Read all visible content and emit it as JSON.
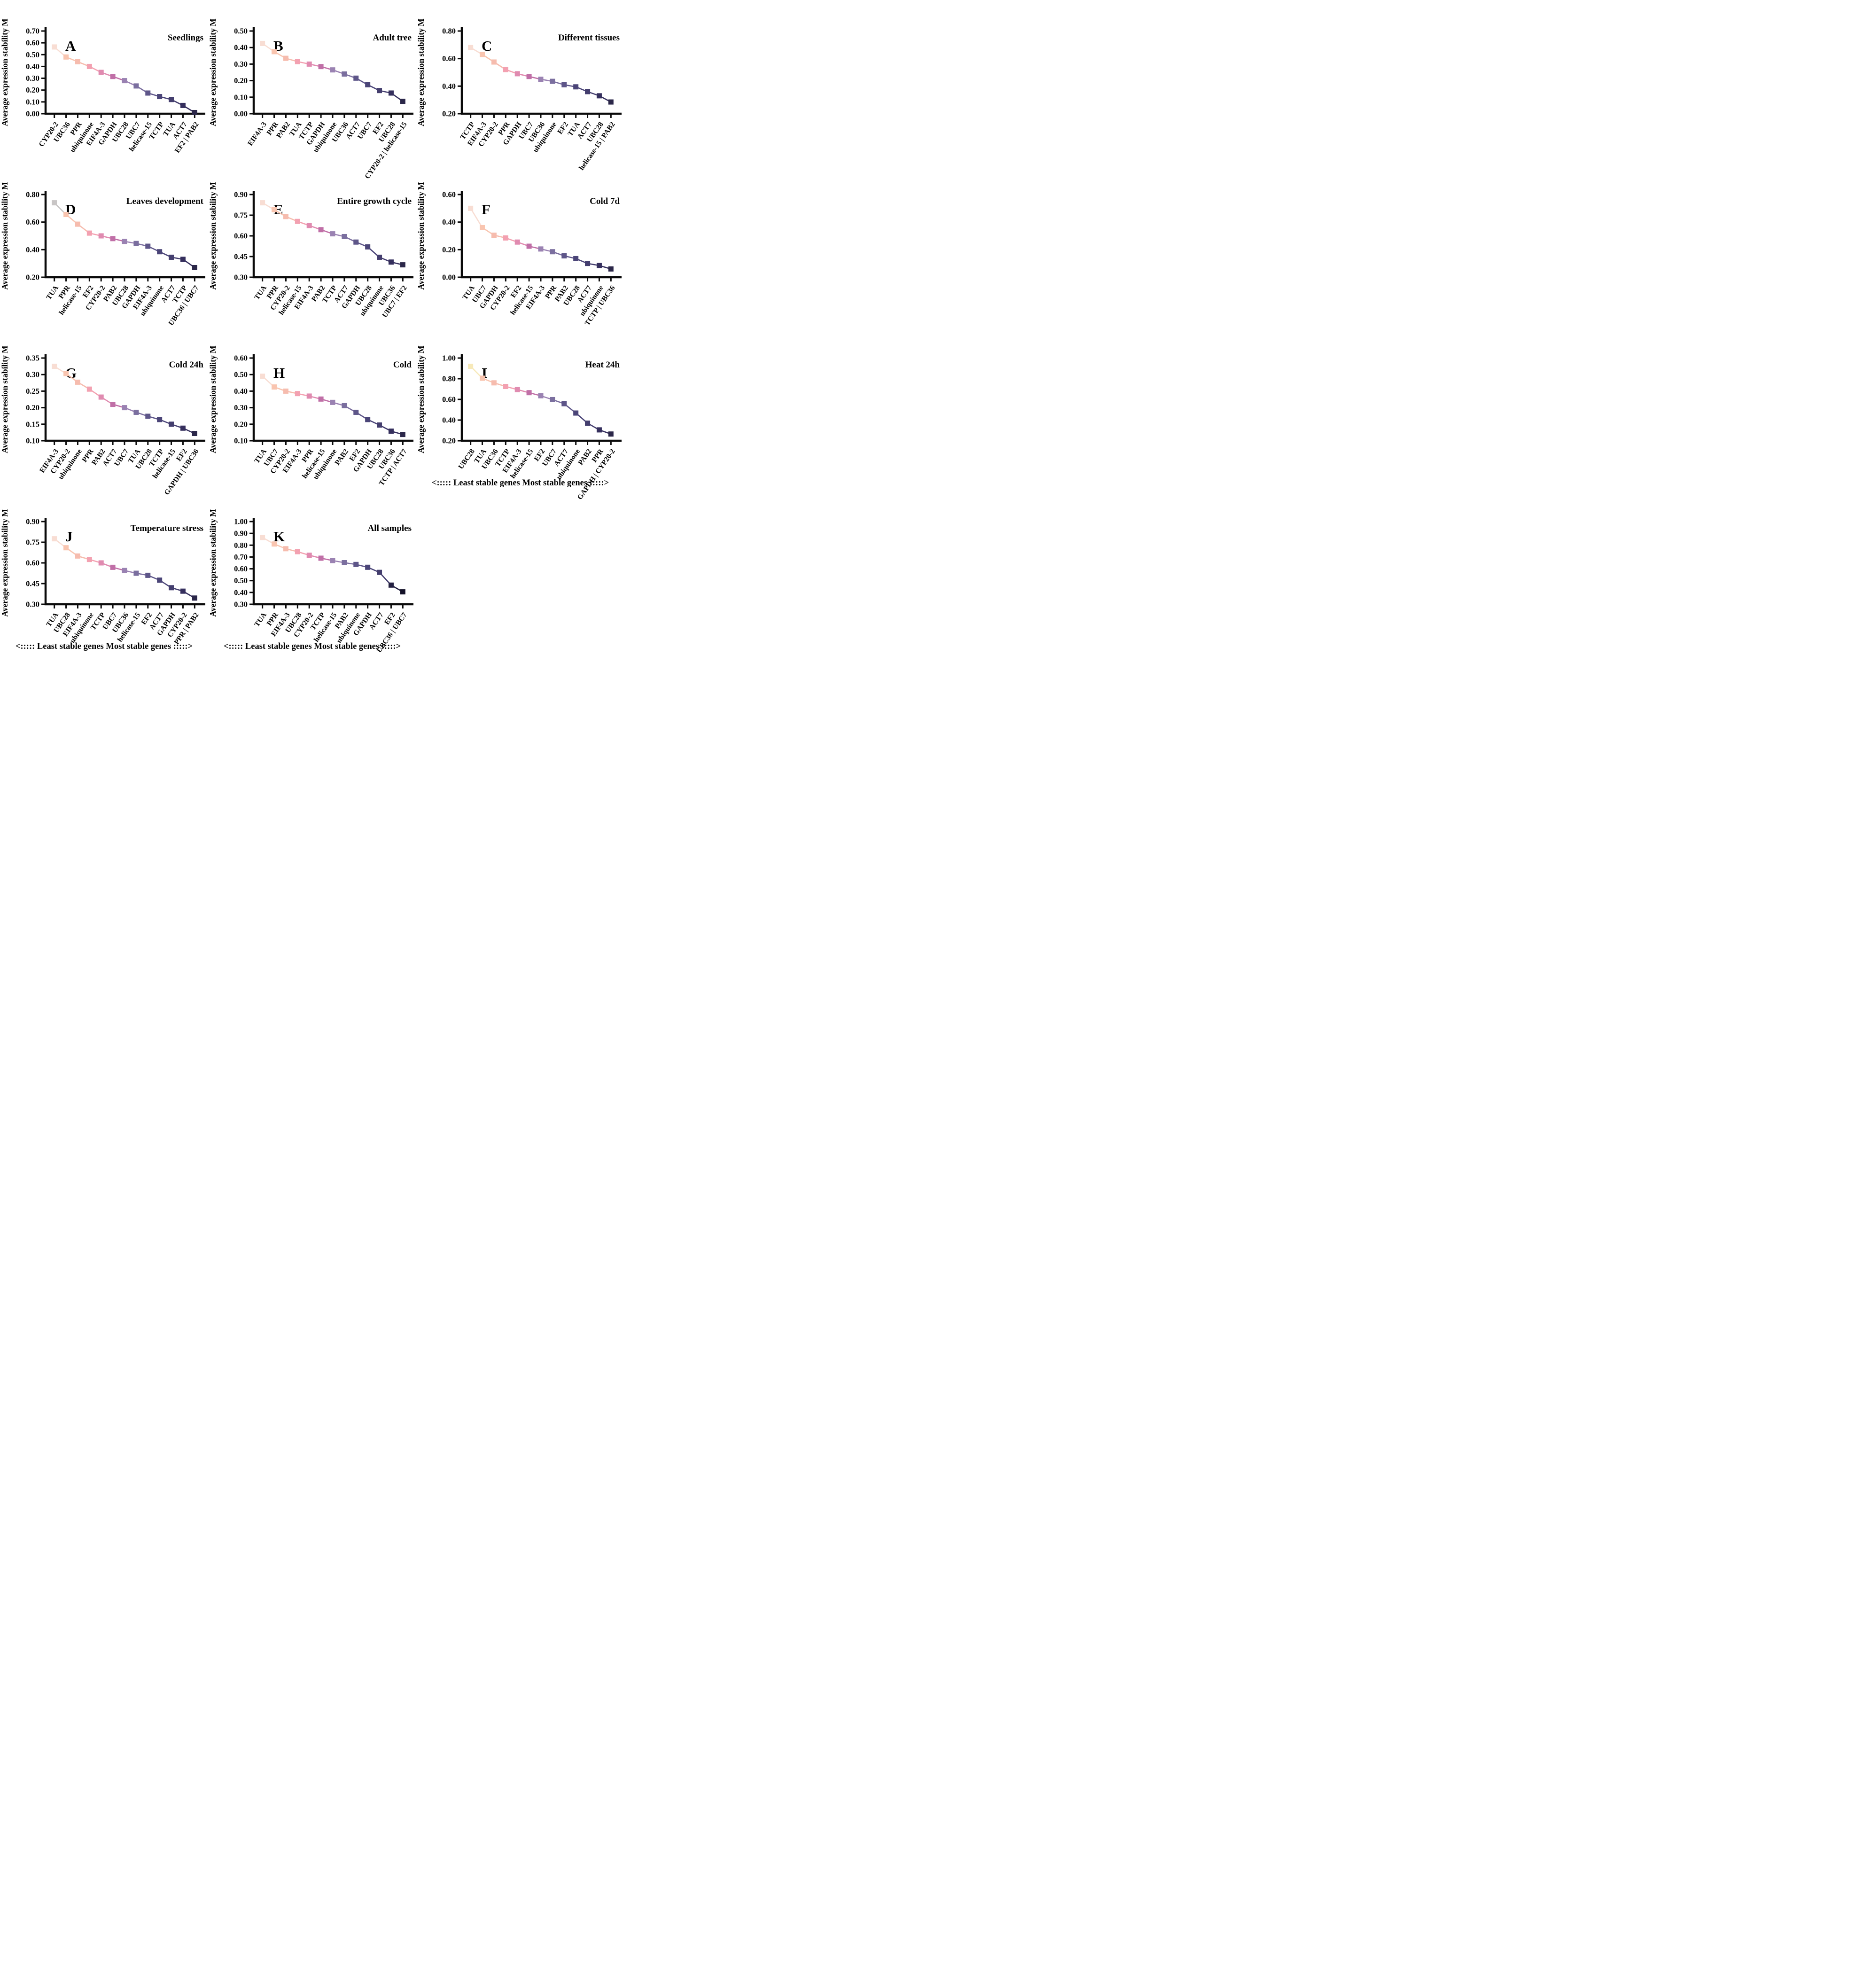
{
  "figure": {
    "y_axis_label": "Average expression stability M",
    "footer_caption": "<::::: Least stable genes  Most stable genes :::::>",
    "panels_with_caption": [
      "I",
      "J",
      "K"
    ],
    "colors": {
      "axis": "#0a0a0a",
      "background": "#ffffff",
      "marker_gradient": [
        "#f8ddd3",
        "#f9c5b0",
        "#f6bcae",
        "#f3a1b1",
        "#e08bb0",
        "#c06fa7",
        "#9a82b2",
        "#7b6f9f",
        "#5e5689",
        "#4b4578",
        "#443e6e",
        "#352f5d",
        "#2b2749"
      ],
      "marker_overrides": {
        "D": {
          "0": "#c8c5c5"
        },
        "I": {
          "0": "#f7e9b9"
        },
        "K": {
          "11": "#232041",
          "12": "#131128"
        }
      }
    }
  },
  "chart_data": [
    {
      "type": "line",
      "panel": "A",
      "title": "Seedlings",
      "ylabel": "Average expression stability M",
      "ylim": [
        0.0,
        0.7
      ],
      "ytick_step": 0.1,
      "grid": false,
      "categories": [
        "CYP20-2",
        "UBC36",
        "PPR",
        "ubiquinone",
        "EIF4A-3",
        "GAPDH",
        "UBC28",
        "UBC7",
        "helicase-15",
        "TCTP",
        "TUA",
        "ACT7",
        "EF2 | PAB2"
      ],
      "values": [
        0.565,
        0.48,
        0.44,
        0.4,
        0.35,
        0.315,
        0.28,
        0.235,
        0.175,
        0.145,
        0.12,
        0.07,
        0.01
      ]
    },
    {
      "type": "line",
      "panel": "B",
      "title": "Adult tree",
      "ylabel": "Average expression stability M",
      "ylim": [
        0.0,
        0.5
      ],
      "ytick_step": 0.1,
      "grid": false,
      "categories": [
        "EIF4A-3",
        "PPR",
        "PAB2",
        "TUA",
        "TCTP",
        "GAPDH",
        "ubiquinone",
        "UBC36",
        "ACT7",
        "UBC7",
        "EF2",
        "UBC28",
        "CYP20-2 | helicase-15"
      ],
      "values": [
        0.425,
        0.375,
        0.335,
        0.315,
        0.3,
        0.285,
        0.265,
        0.24,
        0.215,
        0.175,
        0.14,
        0.125,
        0.075
      ]
    },
    {
      "type": "line",
      "panel": "C",
      "title": "Different tissues",
      "ylabel": "Average expression stability M",
      "ylim": [
        0.2,
        0.8
      ],
      "ytick_step": 0.2,
      "grid": false,
      "categories": [
        "TCTP",
        "EIF4A-3",
        "CYP20-2",
        "PPR",
        "GAPDH",
        "UBC7",
        "UBC36",
        "ubiquinone",
        "EF2",
        "TUA",
        "ACT7",
        "UBC28",
        "helicase-15 | PAB2"
      ],
      "values": [
        0.68,
        0.63,
        0.575,
        0.52,
        0.49,
        0.47,
        0.45,
        0.435,
        0.41,
        0.395,
        0.36,
        0.33,
        0.285
      ]
    },
    {
      "type": "line",
      "panel": "D",
      "title": "Leaves development",
      "ylabel": "Average expression stability M",
      "ylim": [
        0.2,
        0.8
      ],
      "ytick_step": 0.2,
      "grid": false,
      "categories": [
        "TUA",
        "PPR",
        "helicase-15",
        "EF2",
        "CYP20-2",
        "PAB2",
        "UBC28",
        "GAPDH",
        "EIF4A-3",
        "ubiquinone",
        "ACT7",
        "TCTP",
        "UBC36 | UBC7"
      ],
      "values": [
        0.74,
        0.655,
        0.585,
        0.52,
        0.5,
        0.48,
        0.46,
        0.445,
        0.425,
        0.385,
        0.345,
        0.33,
        0.27
      ]
    },
    {
      "type": "line",
      "panel": "E",
      "title": "Entire growth cycle",
      "ylabel": "Average expression stability M",
      "ylim": [
        0.3,
        0.9
      ],
      "ytick_step": 0.15,
      "grid": false,
      "categories": [
        "TUA",
        "PPR",
        "CYP20-2",
        "helicase-15",
        "EIF4A-3",
        "PAB2",
        "TCTP",
        "ACT7",
        "GAPDH",
        "UBC28",
        "ubiquinone",
        "UBC36",
        "UBC7 | EF2"
      ],
      "values": [
        0.84,
        0.79,
        0.74,
        0.705,
        0.675,
        0.645,
        0.615,
        0.595,
        0.555,
        0.52,
        0.445,
        0.41,
        0.39
      ]
    },
    {
      "type": "line",
      "panel": "F",
      "title": "Cold 7d",
      "ylabel": "Average expression stability M",
      "ylim": [
        0.0,
        0.6
      ],
      "ytick_step": 0.2,
      "grid": false,
      "categories": [
        "TUA",
        "UBC7",
        "GAPDH",
        "CYP20-2",
        "EF2",
        "helicase-15",
        "EIF4A-3",
        "PPR",
        "PAB2",
        "UBC28",
        "ACT7",
        "ubiquinone",
        "TCTP | UBC36"
      ],
      "values": [
        0.5,
        0.36,
        0.305,
        0.285,
        0.255,
        0.225,
        0.205,
        0.185,
        0.155,
        0.135,
        0.1,
        0.085,
        0.06
      ]
    },
    {
      "type": "line",
      "panel": "G",
      "title": "Cold 24h",
      "ylabel": "Average expression stability M",
      "ylim": [
        0.1,
        0.35
      ],
      "ytick_step": 0.05,
      "grid": false,
      "categories": [
        "EIF4A-3",
        "CYP20-2",
        "ubiquinone",
        "PPR",
        "PAB2",
        "ACT7",
        "UBC7",
        "TUA",
        "UBC28",
        "TCTP",
        "helicase-15",
        "EF2",
        "GAPDH | UBC36"
      ],
      "values": [
        0.325,
        0.303,
        0.277,
        0.256,
        0.232,
        0.21,
        0.2,
        0.186,
        0.174,
        0.164,
        0.15,
        0.138,
        0.122
      ]
    },
    {
      "type": "line",
      "panel": "H",
      "title": "Cold",
      "ylabel": "Average expression stability M",
      "ylim": [
        0.1,
        0.6
      ],
      "ytick_step": 0.1,
      "grid": false,
      "categories": [
        "TUA",
        "UBC7",
        "CYP20-2",
        "EIF4A-3",
        "PPR",
        "helicase-15",
        "ubiquinone",
        "PAB2",
        "EF2",
        "GAPDH",
        "UBC28",
        "UBC36",
        "TCTP | ACT7"
      ],
      "values": [
        0.49,
        0.425,
        0.4,
        0.385,
        0.37,
        0.352,
        0.332,
        0.312,
        0.272,
        0.228,
        0.195,
        0.158,
        0.138
      ]
    },
    {
      "type": "line",
      "panel": "I",
      "title": "Heat 24h",
      "ylabel": "Average expression stability M",
      "ylim": [
        0.2,
        1.0
      ],
      "ytick_step": 0.2,
      "grid": false,
      "categories": [
        "UBC28",
        "TUA",
        "UBC36",
        "TCTP",
        "EIF4A-3",
        "helicase-15",
        "EF2",
        "UBC7",
        "ACT7",
        "ubiquinone",
        "PAB2",
        "PPR",
        "GAPDH | CYP20-2"
      ],
      "values": [
        0.92,
        0.805,
        0.76,
        0.725,
        0.695,
        0.665,
        0.635,
        0.598,
        0.558,
        0.468,
        0.37,
        0.305,
        0.265
      ]
    },
    {
      "type": "line",
      "panel": "J",
      "title": "Temperature stress",
      "ylabel": "Average expression stability M",
      "ylim": [
        0.3,
        0.9
      ],
      "ytick_step": 0.15,
      "grid": false,
      "categories": [
        "TUA",
        "UBC28",
        "EIF4A-3",
        "ubiquinone",
        "TCTP",
        "UBC7",
        "UBC36",
        "helicase-15",
        "EF2",
        "ACT7",
        "GAPDH",
        "CYP20-2",
        "PPR | PAB2"
      ],
      "values": [
        0.775,
        0.71,
        0.65,
        0.625,
        0.6,
        0.568,
        0.545,
        0.525,
        0.51,
        0.475,
        0.42,
        0.395,
        0.345
      ]
    },
    {
      "type": "line",
      "panel": "K",
      "title": "All samples",
      "ylabel": "Average expression stability M",
      "ylim": [
        0.3,
        1.0
      ],
      "ytick_step": 0.1,
      "grid": false,
      "categories": [
        "TUA",
        "PPR",
        "EIF4A-3",
        "UBC28",
        "CYP20-2",
        "TCTP",
        "helicase-15",
        "PAB2",
        "ubiquinone",
        "GAPDH",
        "ACT7",
        "EF2",
        "UBC36 | UBC7"
      ],
      "values": [
        0.865,
        0.81,
        0.77,
        0.745,
        0.715,
        0.69,
        0.67,
        0.652,
        0.637,
        0.613,
        0.57,
        0.462,
        0.405
      ]
    }
  ]
}
